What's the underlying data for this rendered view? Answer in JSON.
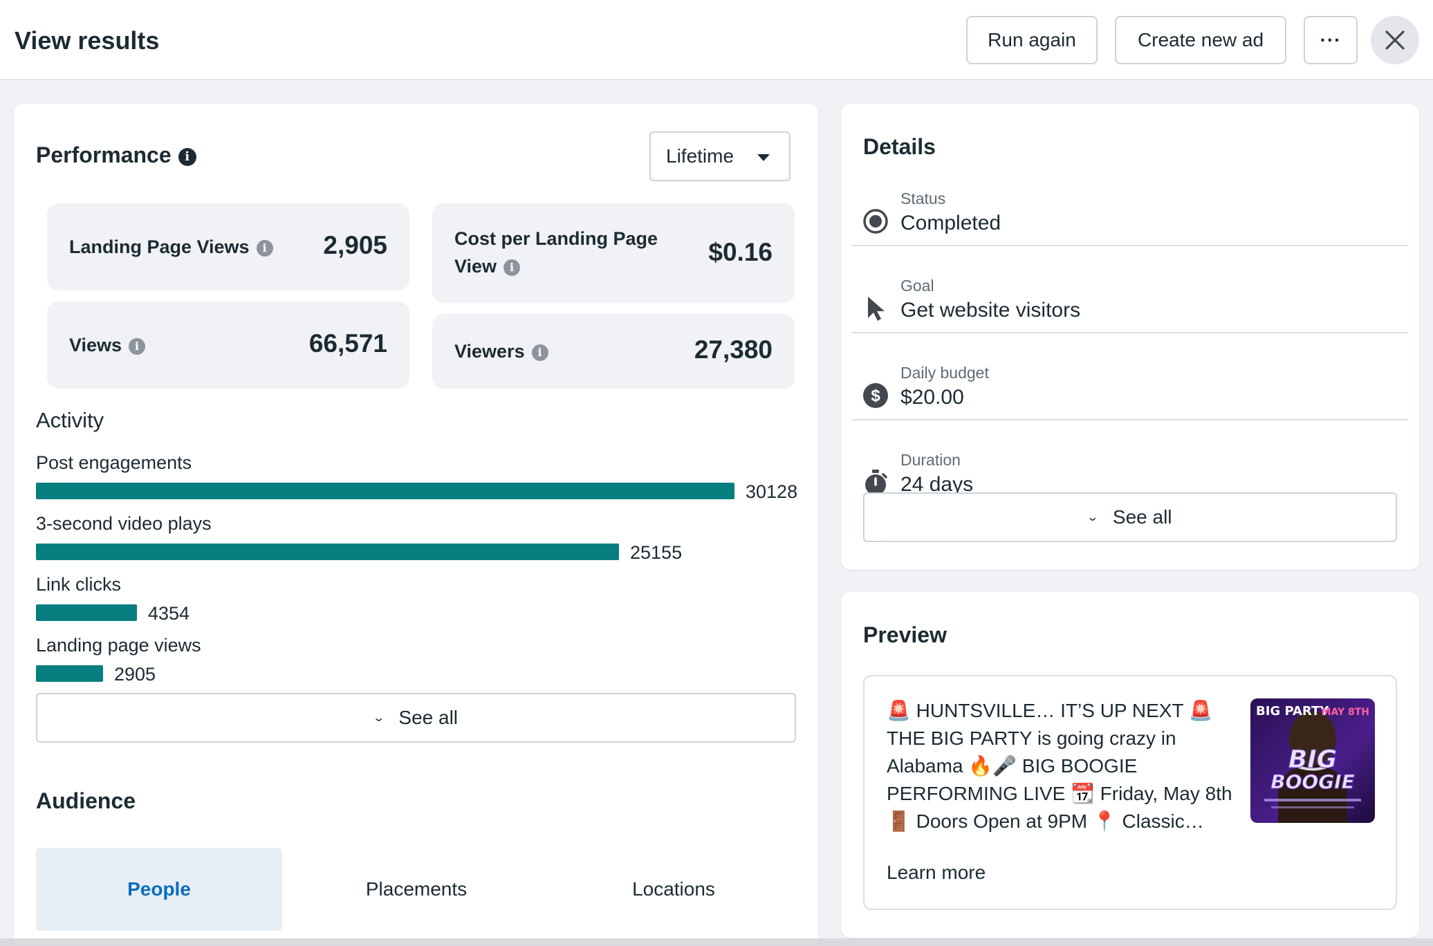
{
  "header": {
    "title": "View results",
    "run_again": "Run again",
    "create_new_ad": "Create new ad",
    "more": "···"
  },
  "performance": {
    "title": "Performance",
    "period": "Lifetime",
    "metrics": [
      {
        "label": "Landing Page Views",
        "value": "2,905"
      },
      {
        "label": "Cost per Landing Page View",
        "value": "$0.16"
      },
      {
        "label": "Views",
        "value": "66,571"
      },
      {
        "label": "Viewers",
        "value": "27,380"
      }
    ]
  },
  "activity": {
    "title": "Activity",
    "max": 30128,
    "items": [
      {
        "label": "Post engagements",
        "value": 30128
      },
      {
        "label": "3-second video plays",
        "value": 25155
      },
      {
        "label": "Link clicks",
        "value": 4354
      },
      {
        "label": "Landing page views",
        "value": 2905
      }
    ],
    "see_all": "See all",
    "bar_color": "#077e80"
  },
  "audience": {
    "title": "Audience",
    "tabs": [
      "People",
      "Placements",
      "Locations"
    ],
    "active_tab": "People"
  },
  "details": {
    "title": "Details",
    "rows": [
      {
        "label": "Status",
        "value": "Completed",
        "icon": "radio-selected-icon"
      },
      {
        "label": "Goal",
        "value": "Get website visitors",
        "icon": "cursor-icon"
      },
      {
        "label": "Daily budget",
        "value": "$20.00",
        "icon": "dollar-icon"
      },
      {
        "label": "Duration",
        "value": "24 days",
        "icon": "stopwatch-icon"
      }
    ],
    "see_all": "See all"
  },
  "preview": {
    "title": "Preview",
    "text": "🚨 HUNTSVILLE… IT’S UP NEXT 🚨 THE BIG PARTY is going crazy in Alabama 🔥🎤 BIG BOOGIE PERFORMING LIVE 📆 Friday, May 8th 🚪 Doors Open at 9PM 📍 Classic…",
    "link": "Learn more",
    "image": {
      "line1": "BIG",
      "line2": "BOOGIE",
      "corner_left": "BIG PARTY",
      "corner_right": "MAY 8TH"
    }
  }
}
